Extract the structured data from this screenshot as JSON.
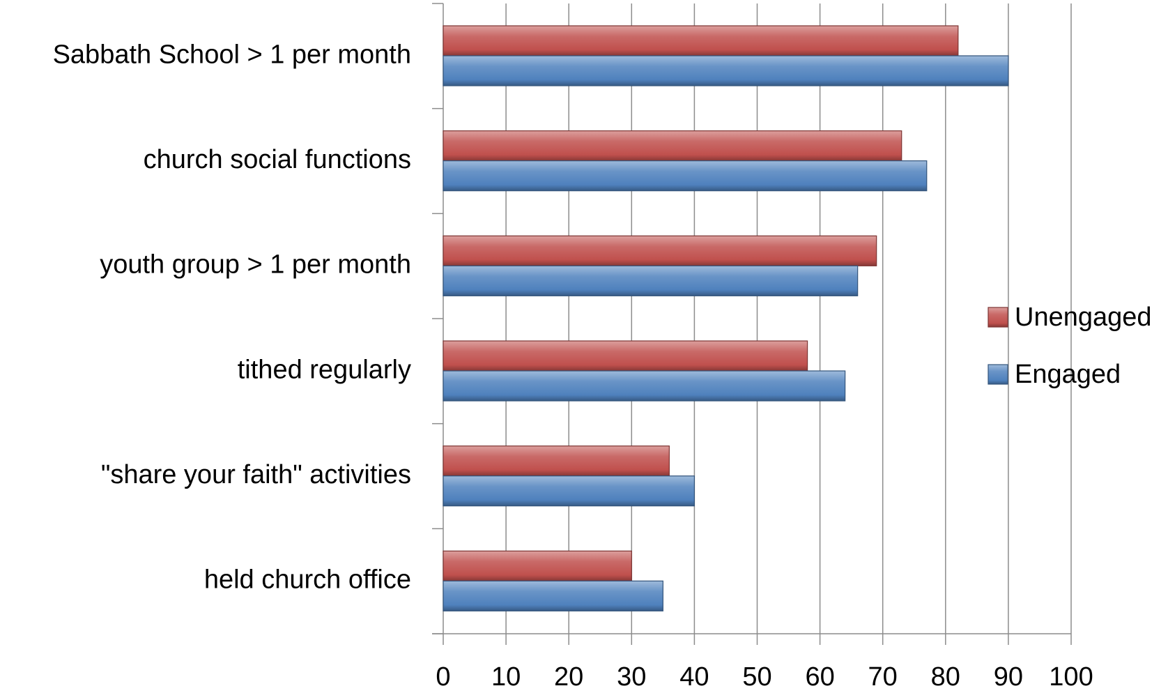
{
  "chart_data": {
    "type": "bar",
    "orientation": "horizontal",
    "categories": [
      "Sabbath School > 1 per month",
      "church social functions",
      "youth group > 1 per month",
      "tithed regularly",
      "\"share your faith\" activities",
      "held church office"
    ],
    "series": [
      {
        "name": "Unengaged",
        "color": "#c0504d",
        "values": [
          82,
          73,
          69,
          58,
          36,
          30
        ]
      },
      {
        "name": "Engaged",
        "color": "#4f81bd",
        "values": [
          90,
          77,
          66,
          64,
          40,
          35
        ]
      }
    ],
    "xlim": [
      0,
      100
    ],
    "xticks": [
      0,
      10,
      20,
      30,
      40,
      50,
      60,
      70,
      80,
      90,
      100
    ],
    "grid": true,
    "legend": "right"
  }
}
